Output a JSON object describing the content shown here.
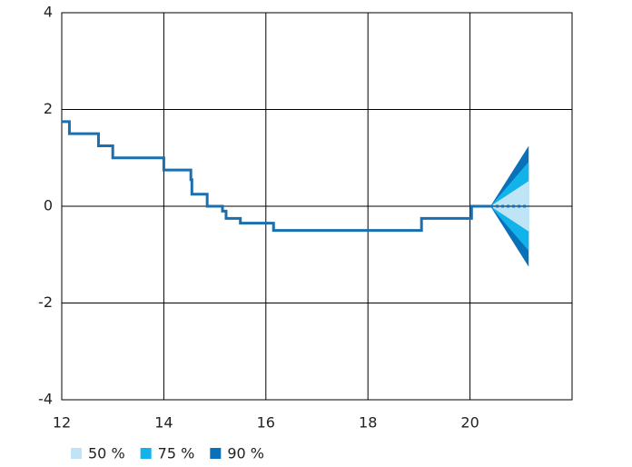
{
  "chart_data": {
    "type": "line",
    "xlim": [
      12,
      22
    ],
    "ylim": [
      -4,
      4
    ],
    "xticks": [
      12,
      14,
      16,
      18,
      20
    ],
    "yticks": [
      4,
      2,
      0,
      -2,
      -4
    ],
    "grid": true,
    "series": [
      {
        "color": "#1a6fb0",
        "style": "solid",
        "x": [
          12,
          12.15,
          12.15,
          12.72,
          12.72,
          13.0,
          13.0,
          14.0,
          14.0,
          14.53,
          14.53,
          14.55,
          14.55,
          14.85,
          14.85,
          15.15,
          15.15,
          15.22,
          15.22,
          15.5,
          15.5,
          16.15,
          16.15,
          19.05,
          19.05,
          20.03,
          20.03,
          20.4
        ],
        "values": [
          1.75,
          1.75,
          1.5,
          1.5,
          1.25,
          1.25,
          1.0,
          1.0,
          0.75,
          0.75,
          0.55,
          0.55,
          0.25,
          0.25,
          0,
          0,
          -0.1,
          -0.1,
          -0.25,
          -0.25,
          -0.35,
          -0.35,
          -0.5,
          -0.5,
          -0.25,
          -0.25,
          0,
          0
        ]
      },
      {
        "color": "#1a6fb0",
        "style": "dotted",
        "x": [
          20.4,
          21.15
        ],
        "values": [
          0,
          0
        ]
      }
    ],
    "fan": {
      "x": [
        20.4,
        21.15
      ],
      "bands": [
        {
          "name": "90 %",
          "color": "#0a70b8",
          "lower": [
            0,
            -1.25
          ],
          "upper": [
            0,
            1.25
          ]
        },
        {
          "name": "75 %",
          "color": "#12b2ea",
          "lower": [
            0,
            -0.92
          ],
          "upper": [
            0,
            0.92
          ]
        },
        {
          "name": "50 %",
          "color": "#bfe4f6",
          "lower": [
            0,
            -0.52
          ],
          "upper": [
            0,
            0.52
          ]
        }
      ]
    },
    "legend_order": [
      2,
      1,
      0
    ]
  }
}
